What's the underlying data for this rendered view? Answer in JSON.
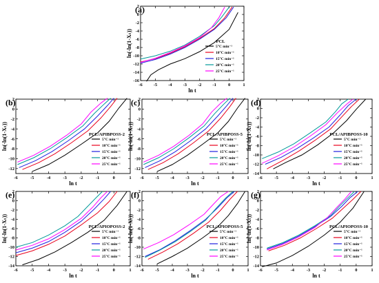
{
  "figure": {
    "legend_labels": [
      "5°C min⁻¹",
      "10°C min⁻¹",
      "15°C min⁻¹",
      "20°C min⁻¹",
      "25°C min⁻¹"
    ],
    "series_colors": [
      "#000000",
      "#e8001c",
      "#1f1fe0",
      "#009999",
      "#ff00ff"
    ]
  },
  "chart_data": [
    {
      "type": "line",
      "panel": "(a)",
      "title": "PCL",
      "xlabel": "ln t",
      "ylabel": "ln(-ln(1-Xₜ))",
      "xlim": [
        -6,
        1
      ],
      "ylim": [
        -16,
        2
      ],
      "xticks": [
        -6,
        -5,
        -4,
        -3,
        -2,
        -1,
        0,
        1
      ],
      "yticks": [
        2,
        0,
        -2,
        -4,
        -6,
        -8,
        -10,
        -12,
        -14,
        -16
      ],
      "grid": false,
      "legend_position": "lower-right",
      "series": [
        {
          "name": "5°C min⁻¹",
          "x": [
            -5.6,
            -5.3,
            -4.8,
            -4,
            -3,
            -2,
            -1,
            0,
            0.6
          ],
          "y": [
            -16.2,
            -14.6,
            -13.4,
            -12,
            -10.7,
            -9,
            -6.8,
            -3.6,
            0.5
          ]
        },
        {
          "name": "10°C min⁻¹",
          "x": [
            -6,
            -5,
            -4,
            -3,
            -2,
            -1,
            -0.3,
            0.2
          ],
          "y": [
            -11.5,
            -10.7,
            -9.4,
            -7.8,
            -5.8,
            -3.4,
            -0.8,
            1.8
          ]
        },
        {
          "name": "15°C min⁻¹",
          "x": [
            -6,
            -5,
            -4,
            -3,
            -2,
            -1,
            -0.2,
            0.3
          ],
          "y": [
            -11.8,
            -10.9,
            -9.6,
            -8,
            -6,
            -3.6,
            -0.8,
            1.8
          ]
        },
        {
          "name": "20°C min⁻¹",
          "x": [
            -6,
            -5,
            -4,
            -3,
            -2,
            -1,
            -0.5,
            0
          ],
          "y": [
            -10.8,
            -10,
            -8.9,
            -7.4,
            -5.3,
            -2.7,
            -0.6,
            1.8
          ]
        },
        {
          "name": "25°C min⁻¹",
          "x": [
            -6,
            -5,
            -4,
            -3,
            -2,
            -1.2,
            -0.7,
            -0.3
          ],
          "y": [
            -11.6,
            -10.6,
            -9.2,
            -7.6,
            -5.6,
            -3.2,
            -0.8,
            1.8
          ]
        }
      ]
    },
    {
      "type": "line",
      "panel": "(b)",
      "title": "PCL/APIBPOSS-2",
      "xlabel": "ln t",
      "ylabel": "ln(-ln(1-Xₜ))",
      "xlim": [
        -6,
        1
      ],
      "ylim": [
        -13,
        2
      ],
      "xticks": [
        -6,
        -5,
        -4,
        -3,
        -2,
        -1,
        0,
        1
      ],
      "yticks": [
        2,
        0,
        -2,
        -4,
        -6,
        -8,
        -10,
        -12
      ],
      "grid": false,
      "legend_position": "lower-right",
      "series": [
        {
          "name": "5°C min⁻¹",
          "x": [
            -5,
            -4,
            -3,
            -2,
            -1,
            -0.3,
            0.3,
            0.8
          ],
          "y": [
            -12.6,
            -11.2,
            -9.3,
            -7.1,
            -4.8,
            -2.5,
            0.2,
            2.2
          ]
        },
        {
          "name": "10°C min⁻¹",
          "x": [
            -5.6,
            -4.6,
            -3.6,
            -2.6,
            -1.6,
            -0.8,
            -0.2,
            0.2
          ],
          "y": [
            -12.2,
            -10.8,
            -9,
            -6.8,
            -4.4,
            -1.8,
            0.5,
            2.2
          ]
        },
        {
          "name": "15°C min⁻¹",
          "x": [
            -5.8,
            -4.8,
            -3.8,
            -2.8,
            -1.8,
            -1,
            -0.4,
            0
          ],
          "y": [
            -11.8,
            -10.4,
            -8.6,
            -6.4,
            -4,
            -1.4,
            0.7,
            2.2
          ]
        },
        {
          "name": "20°C min⁻¹",
          "x": [
            -5.9,
            -4.9,
            -3.9,
            -2.9,
            -1.9,
            -1.2,
            -0.6,
            -0.2
          ],
          "y": [
            -11.2,
            -9.8,
            -8,
            -5.8,
            -3.4,
            -0.9,
            1,
            2.2
          ]
        },
        {
          "name": "25°C min⁻¹",
          "x": [
            -5.9,
            -4.9,
            -3.9,
            -2.9,
            -2,
            -1.4,
            -0.8,
            -0.4
          ],
          "y": [
            -10.7,
            -9.3,
            -7.5,
            -5.3,
            -3,
            -0.6,
            1.2,
            2.2
          ]
        }
      ]
    },
    {
      "type": "line",
      "panel": "(c)",
      "title": "PCL/APIBPOSS-5",
      "xlabel": "ln t",
      "ylabel": "ln(-ln(1-Xₜ))",
      "xlim": [
        -6,
        1
      ],
      "ylim": [
        -13,
        2
      ],
      "xticks": [
        -6,
        -5,
        -4,
        -3,
        -2,
        -1,
        0,
        1
      ],
      "yticks": [
        2,
        0,
        -2,
        -4,
        -6,
        -8,
        -10,
        -12
      ],
      "grid": false,
      "legend_position": "lower-right",
      "series": [
        {
          "name": "5°C min⁻¹",
          "x": [
            -5,
            -4,
            -3,
            -2,
            -1,
            -0.3,
            0.3,
            0.8
          ],
          "y": [
            -12.6,
            -11.2,
            -9.3,
            -7.1,
            -4.8,
            -2.5,
            0.2,
            2.2
          ]
        },
        {
          "name": "10°C min⁻¹",
          "x": [
            -5.6,
            -4.6,
            -3.6,
            -2.6,
            -1.6,
            -0.8,
            -0.2,
            0.2
          ],
          "y": [
            -12.2,
            -10.8,
            -9,
            -6.8,
            -4.4,
            -1.8,
            0.5,
            2.2
          ]
        },
        {
          "name": "15°C min⁻¹",
          "x": [
            -5.8,
            -4.8,
            -3.8,
            -2.8,
            -1.8,
            -1,
            -0.4,
            0
          ],
          "y": [
            -11.8,
            -10.4,
            -8.6,
            -6.4,
            -4,
            -1.4,
            0.7,
            2.2
          ]
        },
        {
          "name": "20°C min⁻¹",
          "x": [
            -5.9,
            -4.9,
            -3.9,
            -2.9,
            -1.9,
            -1.2,
            -0.6,
            -0.2
          ],
          "y": [
            -11.2,
            -9.8,
            -8,
            -5.8,
            -3.4,
            -0.9,
            1,
            2.2
          ]
        },
        {
          "name": "25°C min⁻¹",
          "x": [
            -5.9,
            -4.9,
            -3.9,
            -2.9,
            -2,
            -1.4,
            -0.8,
            -0.4
          ],
          "y": [
            -10.7,
            -9.3,
            -7.5,
            -5.3,
            -3,
            -0.6,
            1.2,
            2.2
          ]
        }
      ]
    },
    {
      "type": "line",
      "panel": "(d)",
      "title": "PCL/APIBPOSS-10",
      "xlabel": "ln t",
      "ylabel": "ln(-ln(1-Xₜ))",
      "xlim": [
        -6,
        1
      ],
      "ylim": [
        -14,
        2
      ],
      "xticks": [
        -6,
        -5,
        -4,
        -3,
        -2,
        -1,
        0,
        1
      ],
      "yticks": [
        2,
        0,
        -2,
        -4,
        -6,
        -8,
        -10,
        -12,
        -14
      ],
      "grid": false,
      "legend_position": "lower-right",
      "series": [
        {
          "name": "5°C min⁻¹",
          "x": [
            -5.2,
            -4.4,
            -3.4,
            -2.4,
            -1.4,
            -0.6,
            0,
            0.6
          ],
          "y": [
            -13,
            -11.6,
            -10,
            -7.8,
            -5.2,
            -2.6,
            -0.2,
            2
          ]
        },
        {
          "name": "10°C min⁻¹",
          "x": [
            -5.6,
            -4.6,
            -3.6,
            -2.6,
            -1.6,
            -0.9,
            -0.3,
            0.2
          ],
          "y": [
            -13,
            -11.2,
            -9.2,
            -6.9,
            -4.4,
            -1.8,
            0.4,
            2
          ]
        },
        {
          "name": "15°C min⁻¹",
          "x": [
            -5.7,
            -4.7,
            -3.7,
            -2.7,
            -1.7,
            -1,
            -0.5,
            0
          ],
          "y": [
            -12,
            -10.5,
            -8.6,
            -6.4,
            -4,
            -1.4,
            0.6,
            2
          ]
        },
        {
          "name": "20°C min⁻¹",
          "x": [
            -5.9,
            -4.9,
            -3.9,
            -2.9,
            -1.9,
            -1.3,
            -0.9,
            -0.5
          ],
          "y": [
            -10.8,
            -9.4,
            -7.6,
            -5.3,
            -2.9,
            -0.7,
            1,
            2
          ]
        },
        {
          "name": "25°C min⁻¹",
          "x": [
            -5.9,
            -4.9,
            -3.9,
            -2.9,
            -1.9,
            -1.2,
            -0.6,
            -0.2
          ],
          "y": [
            -11.8,
            -10.2,
            -8.3,
            -6,
            -3.5,
            -1,
            0.9,
            2
          ]
        }
      ]
    },
    {
      "type": "line",
      "panel": "(e)",
      "title": "PCL/APIOPOSS-2",
      "xlabel": "ln t",
      "ylabel": "ln(-ln(1-Xₜ))",
      "xlim": [
        -6,
        1
      ],
      "ylim": [
        -14,
        2
      ],
      "xticks": [
        -6,
        -5,
        -4,
        -3,
        -2,
        -1,
        0,
        1
      ],
      "yticks": [
        2,
        0,
        -2,
        -4,
        -6,
        -8,
        -10,
        -12,
        -14
      ],
      "grid": false,
      "legend_position": "lower-right",
      "series": [
        {
          "name": "5°C min⁻¹",
          "x": [
            -5.6,
            -4.6,
            -3.6,
            -2.6,
            -1.6,
            -0.6,
            0.2,
            0.8
          ],
          "y": [
            -13.8,
            -12.6,
            -11,
            -9,
            -6.8,
            -4.2,
            -1,
            2
          ]
        },
        {
          "name": "10°C min⁻¹",
          "x": [
            -6,
            -5,
            -4,
            -3,
            -2,
            -1,
            -0.3,
            0.2
          ],
          "y": [
            -11.8,
            -10.8,
            -9.4,
            -7.6,
            -5.2,
            -2.6,
            -0.2,
            2
          ]
        },
        {
          "name": "15°C min⁻¹",
          "x": [
            -6,
            -5,
            -4,
            -3,
            -2,
            -1.2,
            -0.6,
            -0.2
          ],
          "y": [
            -11.2,
            -10.2,
            -8.8,
            -6.8,
            -4.4,
            -1.8,
            0.4,
            2
          ]
        },
        {
          "name": "20°C min⁻¹",
          "x": [
            -6,
            -5,
            -4,
            -3,
            -2.2,
            -1.6,
            -1.1,
            -0.7
          ],
          "y": [
            -10,
            -9,
            -7.4,
            -5.4,
            -3.4,
            -1.2,
            0.6,
            2
          ]
        },
        {
          "name": "25°C min⁻¹",
          "x": [
            -6,
            -5,
            -4,
            -3,
            -2,
            -1.3,
            -0.8,
            -0.4
          ],
          "y": [
            -10.6,
            -9.6,
            -8.2,
            -6.2,
            -3.8,
            -1.4,
            0.6,
            2
          ]
        }
      ]
    },
    {
      "type": "line",
      "panel": "(f)",
      "title": "PCL/APIOPOSS-5",
      "xlabel": "ln t",
      "ylabel": "ln(-ln(1-Xₜ))",
      "xlim": [
        -6,
        1
      ],
      "ylim": [
        -14,
        2
      ],
      "xticks": [
        -6,
        -5,
        -4,
        -3,
        -2,
        -1,
        0,
        1
      ],
      "yticks": [
        2,
        0,
        -2,
        -4,
        -6,
        -8,
        -10,
        -12,
        -14
      ],
      "grid": false,
      "legend_position": "lower-right",
      "series": [
        {
          "name": "5°C min⁻¹",
          "x": [
            -5,
            -4,
            -3,
            -2,
            -1,
            -0.3,
            0.3,
            0.8
          ],
          "y": [
            -13.6,
            -12,
            -10.2,
            -8,
            -5.6,
            -3.2,
            -0.6,
            2
          ]
        },
        {
          "name": "10°C min⁻¹",
          "x": [
            -5.6,
            -4.6,
            -3.6,
            -2.6,
            -1.6,
            -0.8,
            -0.2,
            0.3
          ],
          "y": [
            -12.6,
            -11,
            -9.2,
            -7,
            -4.6,
            -2,
            0.3,
            2
          ]
        },
        {
          "name": "15°C min⁻¹",
          "x": [
            -5.8,
            -4.8,
            -3.8,
            -2.8,
            -1.8,
            -1,
            -0.4,
            0.1
          ],
          "y": [
            -12,
            -10.5,
            -8.6,
            -6.4,
            -4,
            -1.5,
            0.6,
            2
          ]
        },
        {
          "name": "20°C min⁻¹",
          "x": [
            -5.8,
            -4.8,
            -3.8,
            -2.8,
            -1.8,
            -1.1,
            -0.5,
            0
          ],
          "y": [
            -12.2,
            -10.6,
            -8.8,
            -6.6,
            -4.2,
            -1.6,
            0.5,
            2
          ]
        },
        {
          "name": "25°C min⁻¹",
          "x": [
            -5.9,
            -4.9,
            -3.9,
            -2.9,
            -1.9,
            -1.3,
            -0.8,
            -0.3
          ],
          "y": [
            -10.4,
            -9,
            -7.3,
            -5.2,
            -2.9,
            -0.8,
            0.9,
            2
          ]
        }
      ]
    },
    {
      "type": "line",
      "panel": "(g)",
      "title": "PCL/APIOPOSS-10",
      "xlabel": "ln t",
      "ylabel": "ln(-ln(1-Xₜ))",
      "xlim": [
        -6,
        1
      ],
      "ylim": [
        -14,
        2
      ],
      "xticks": [
        -6,
        -5,
        -4,
        -3,
        -2,
        -1,
        0,
        1
      ],
      "yticks": [
        2,
        0,
        -2,
        -4,
        -6,
        -8,
        -10,
        -12,
        -14
      ],
      "grid": false,
      "legend_position": "lower-right",
      "series": [
        {
          "name": "5°C min⁻¹",
          "x": [
            -5.9,
            -5,
            -4,
            -3,
            -2,
            -1,
            -0.2,
            0.5
          ],
          "y": [
            -14.2,
            -13.4,
            -11.8,
            -9.8,
            -7.4,
            -4.6,
            -1.6,
            2
          ]
        },
        {
          "name": "10°C min⁻¹",
          "x": [
            -5.5,
            -4.5,
            -3.5,
            -2.5,
            -1.5,
            -0.8,
            -0.2,
            0.3
          ],
          "y": [
            -10.8,
            -9.6,
            -8,
            -6,
            -3.8,
            -1.6,
            0.3,
            2
          ]
        },
        {
          "name": "15°C min⁻¹",
          "x": [
            -5.6,
            -4.6,
            -3.6,
            -2.6,
            -1.6,
            -0.9,
            -0.4,
            0.1
          ],
          "y": [
            -10.4,
            -9.2,
            -7.6,
            -5.6,
            -3.4,
            -1.2,
            0.6,
            2
          ]
        },
        {
          "name": "20°C min⁻¹",
          "x": [
            -5.6,
            -4.6,
            -3.6,
            -2.6,
            -1.6,
            -1,
            -0.5,
            -0.1
          ],
          "y": [
            -10.2,
            -9,
            -7.4,
            -5.4,
            -3.2,
            -1,
            0.7,
            2
          ]
        },
        {
          "name": "25°C min⁻¹",
          "x": [
            -5.6,
            -4.6,
            -3.6,
            -2.6,
            -1.8,
            -1.2,
            -0.7,
            -0.3
          ],
          "y": [
            -10.6,
            -9.4,
            -7.8,
            -5.8,
            -3.6,
            -1.4,
            0.4,
            2
          ]
        }
      ]
    }
  ]
}
